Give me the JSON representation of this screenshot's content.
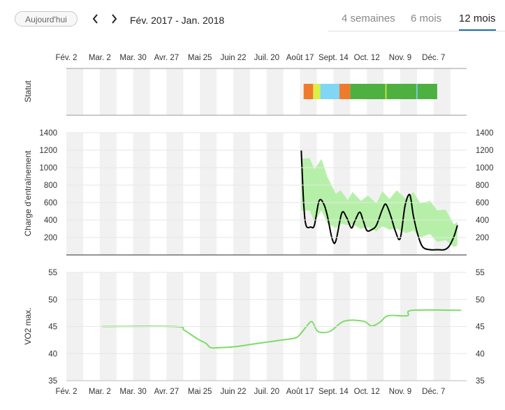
{
  "header": {
    "today_label": "Aujourd'hui",
    "date_range": "Fév. 2017 - Jan. 2018",
    "tabs": [
      {
        "label": "4 semaines",
        "active": false
      },
      {
        "label": "6 mois",
        "active": false
      },
      {
        "label": "12 mois",
        "active": true
      }
    ]
  },
  "colors": {
    "load_band": "#b6f0a8",
    "load_line": "#000000",
    "vo2_line": "#7ddc68",
    "week_stripe": "#f1f1f1",
    "tab_underline": "#1f6fb5"
  },
  "chart_data": [
    {
      "type": "heatmap",
      "ylabel": "Statut",
      "x_ticks": [
        "Fév. 2",
        "Mar. 2",
        "Mar. 30",
        "Avr. 27",
        "Mai 25",
        "Juin 22",
        "Juil. 20",
        "Août 17",
        "Sept. 14",
        "Oct. 12",
        "Nov. 9",
        "Déc. 7"
      ],
      "segments": [
        {
          "start": "2017-08-20",
          "end": "2017-08-28",
          "color": "#f07a2c"
        },
        {
          "start": "2017-08-28",
          "end": "2017-09-03",
          "color": "#d8f048"
        },
        {
          "start": "2017-09-03",
          "end": "2017-09-19",
          "color": "#7fd6f5"
        },
        {
          "start": "2017-09-19",
          "end": "2017-09-28",
          "color": "#f07a2c"
        },
        {
          "start": "2017-09-28",
          "end": "2017-12-10",
          "color": "#4eb040"
        }
      ],
      "markers": [
        {
          "date": "2017-10-28",
          "color": "#d8f048"
        },
        {
          "date": "2017-11-23",
          "color": "#7fd6f5"
        }
      ]
    },
    {
      "type": "area",
      "ylabel": "Charge d’entraînement",
      "ylim": [
        0,
        1400
      ],
      "y_ticks": [
        200,
        400,
        600,
        800,
        1000,
        1200,
        1400
      ],
      "band": [
        {
          "x": "2017-08-18",
          "low": 510,
          "high": 1100
        },
        {
          "x": "2017-08-25",
          "low": 510,
          "high": 1110
        },
        {
          "x": "2017-08-29",
          "low": 380,
          "high": 980
        },
        {
          "x": "2017-09-04",
          "low": 510,
          "high": 1100
        },
        {
          "x": "2017-09-09",
          "low": 360,
          "high": 890
        },
        {
          "x": "2017-09-16",
          "low": 310,
          "high": 700
        },
        {
          "x": "2017-09-20",
          "low": 360,
          "high": 740
        },
        {
          "x": "2017-09-26",
          "low": 340,
          "high": 630
        },
        {
          "x": "2017-09-30",
          "low": 350,
          "high": 720
        },
        {
          "x": "2017-10-07",
          "low": 300,
          "high": 620
        },
        {
          "x": "2017-10-13",
          "low": 320,
          "high": 680
        },
        {
          "x": "2017-10-20",
          "low": 270,
          "high": 590
        },
        {
          "x": "2017-10-25",
          "low": 330,
          "high": 730
        },
        {
          "x": "2017-10-31",
          "low": 290,
          "high": 640
        },
        {
          "x": "2017-11-06",
          "low": 300,
          "high": 740
        },
        {
          "x": "2017-11-14",
          "low": 250,
          "high": 640
        },
        {
          "x": "2017-11-20",
          "low": 280,
          "high": 720
        },
        {
          "x": "2017-11-26",
          "low": 200,
          "high": 590
        },
        {
          "x": "2017-12-04",
          "low": 240,
          "high": 620
        },
        {
          "x": "2017-12-10",
          "low": 150,
          "high": 510
        },
        {
          "x": "2017-12-17",
          "low": 170,
          "high": 520
        },
        {
          "x": "2017-12-24",
          "low": 90,
          "high": 350
        },
        {
          "x": "2017-12-27",
          "low": 110,
          "high": 380
        }
      ],
      "series": [
        {
          "values": [
            {
              "x": "2017-08-18",
              "y": 1200
            },
            {
              "x": "2017-08-20",
              "y": 600
            },
            {
              "x": "2017-08-22",
              "y": 340
            },
            {
              "x": "2017-08-26",
              "y": 320
            },
            {
              "x": "2017-08-29",
              "y": 340
            },
            {
              "x": "2017-09-02",
              "y": 620
            },
            {
              "x": "2017-09-06",
              "y": 580
            },
            {
              "x": "2017-09-09",
              "y": 440
            },
            {
              "x": "2017-09-13",
              "y": 180
            },
            {
              "x": "2017-09-16",
              "y": 160
            },
            {
              "x": "2017-09-21",
              "y": 480
            },
            {
              "x": "2017-09-25",
              "y": 430
            },
            {
              "x": "2017-09-29",
              "y": 310
            },
            {
              "x": "2017-10-02",
              "y": 390
            },
            {
              "x": "2017-10-06",
              "y": 490
            },
            {
              "x": "2017-10-09",
              "y": 390
            },
            {
              "x": "2017-10-12",
              "y": 280
            },
            {
              "x": "2017-10-16",
              "y": 290
            },
            {
              "x": "2017-10-20",
              "y": 340
            },
            {
              "x": "2017-10-25",
              "y": 520
            },
            {
              "x": "2017-10-28",
              "y": 580
            },
            {
              "x": "2017-11-01",
              "y": 450
            },
            {
              "x": "2017-11-05",
              "y": 270
            },
            {
              "x": "2017-11-09",
              "y": 190
            },
            {
              "x": "2017-11-13",
              "y": 560
            },
            {
              "x": "2017-11-17",
              "y": 690
            },
            {
              "x": "2017-11-20",
              "y": 450
            },
            {
              "x": "2017-11-24",
              "y": 220
            },
            {
              "x": "2017-11-28",
              "y": 90
            },
            {
              "x": "2017-12-04",
              "y": 60
            },
            {
              "x": "2017-12-10",
              "y": 60
            },
            {
              "x": "2017-12-16",
              "y": 60
            },
            {
              "x": "2017-12-20",
              "y": 100
            },
            {
              "x": "2017-12-24",
              "y": 210
            },
            {
              "x": "2017-12-27",
              "y": 340
            }
          ]
        }
      ]
    },
    {
      "type": "line",
      "ylabel": "VO2 max.",
      "ylim": [
        35,
        55
      ],
      "y_ticks": [
        35,
        40,
        45,
        50,
        55
      ],
      "x_ticks": [
        "Fév. 2",
        "Mar. 2",
        "Mar. 30",
        "Avr. 27",
        "Mai 25",
        "Juin 22",
        "Juil. 20",
        "Août 17",
        "Sept. 14",
        "Oct. 12",
        "Nov. 9",
        "Déc. 7"
      ],
      "series": [
        {
          "values": [
            {
              "x": "2017-03-04",
              "y": 45
            },
            {
              "x": "2017-05-04",
              "y": 45
            },
            {
              "x": "2017-05-12",
              "y": 44.3
            },
            {
              "x": "2017-05-23",
              "y": 42.7
            },
            {
              "x": "2017-05-30",
              "y": 41.9
            },
            {
              "x": "2017-06-03",
              "y": 41.1
            },
            {
              "x": "2017-06-10",
              "y": 41.1
            },
            {
              "x": "2017-06-24",
              "y": 41.3
            },
            {
              "x": "2017-07-10",
              "y": 41.8
            },
            {
              "x": "2017-07-29",
              "y": 42.4
            },
            {
              "x": "2017-08-11",
              "y": 42.8
            },
            {
              "x": "2017-08-16",
              "y": 43.3
            },
            {
              "x": "2017-08-22",
              "y": 44.9
            },
            {
              "x": "2017-08-27",
              "y": 45.9
            },
            {
              "x": "2017-09-01",
              "y": 44.1
            },
            {
              "x": "2017-09-11",
              "y": 44.1
            },
            {
              "x": "2017-09-23",
              "y": 46
            },
            {
              "x": "2017-10-09",
              "y": 46
            },
            {
              "x": "2017-10-16",
              "y": 45.1
            },
            {
              "x": "2017-10-23",
              "y": 45.8
            },
            {
              "x": "2017-10-30",
              "y": 47
            },
            {
              "x": "2017-11-15",
              "y": 47
            },
            {
              "x": "2017-11-19",
              "y": 48
            },
            {
              "x": "2017-12-30",
              "y": 48
            }
          ]
        }
      ]
    }
  ]
}
